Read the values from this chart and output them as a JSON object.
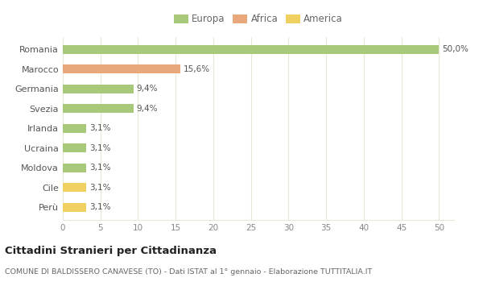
{
  "categories": [
    "Romania",
    "Marocco",
    "Germania",
    "Svezia",
    "Irlanda",
    "Ucraina",
    "Moldova",
    "Cile",
    "Perù"
  ],
  "values": [
    50.0,
    15.6,
    9.4,
    9.4,
    3.1,
    3.1,
    3.1,
    3.1,
    3.1
  ],
  "labels": [
    "50,0%",
    "15,6%",
    "9,4%",
    "9,4%",
    "3,1%",
    "3,1%",
    "3,1%",
    "3,1%",
    "3,1%"
  ],
  "colors": [
    "#a8c87a",
    "#e8a87c",
    "#a8c87a",
    "#a8c87a",
    "#a8c87a",
    "#a8c87a",
    "#a8c87a",
    "#f0d060",
    "#f0d060"
  ],
  "legend": [
    {
      "label": "Europa",
      "color": "#a8c87a"
    },
    {
      "label": "Africa",
      "color": "#e8a87c"
    },
    {
      "label": "America",
      "color": "#f0d060"
    }
  ],
  "title": "Cittadini Stranieri per Cittadinanza",
  "subtitle": "COMUNE DI BALDISSERO CANAVESE (TO) - Dati ISTAT al 1° gennaio - Elaborazione TUTTITALIA.IT",
  "xlim": [
    0,
    50
  ],
  "xticks": [
    0,
    5,
    10,
    15,
    20,
    25,
    30,
    35,
    40,
    45,
    50
  ],
  "background_color": "#ffffff",
  "grid_color": "#e8e8d8"
}
